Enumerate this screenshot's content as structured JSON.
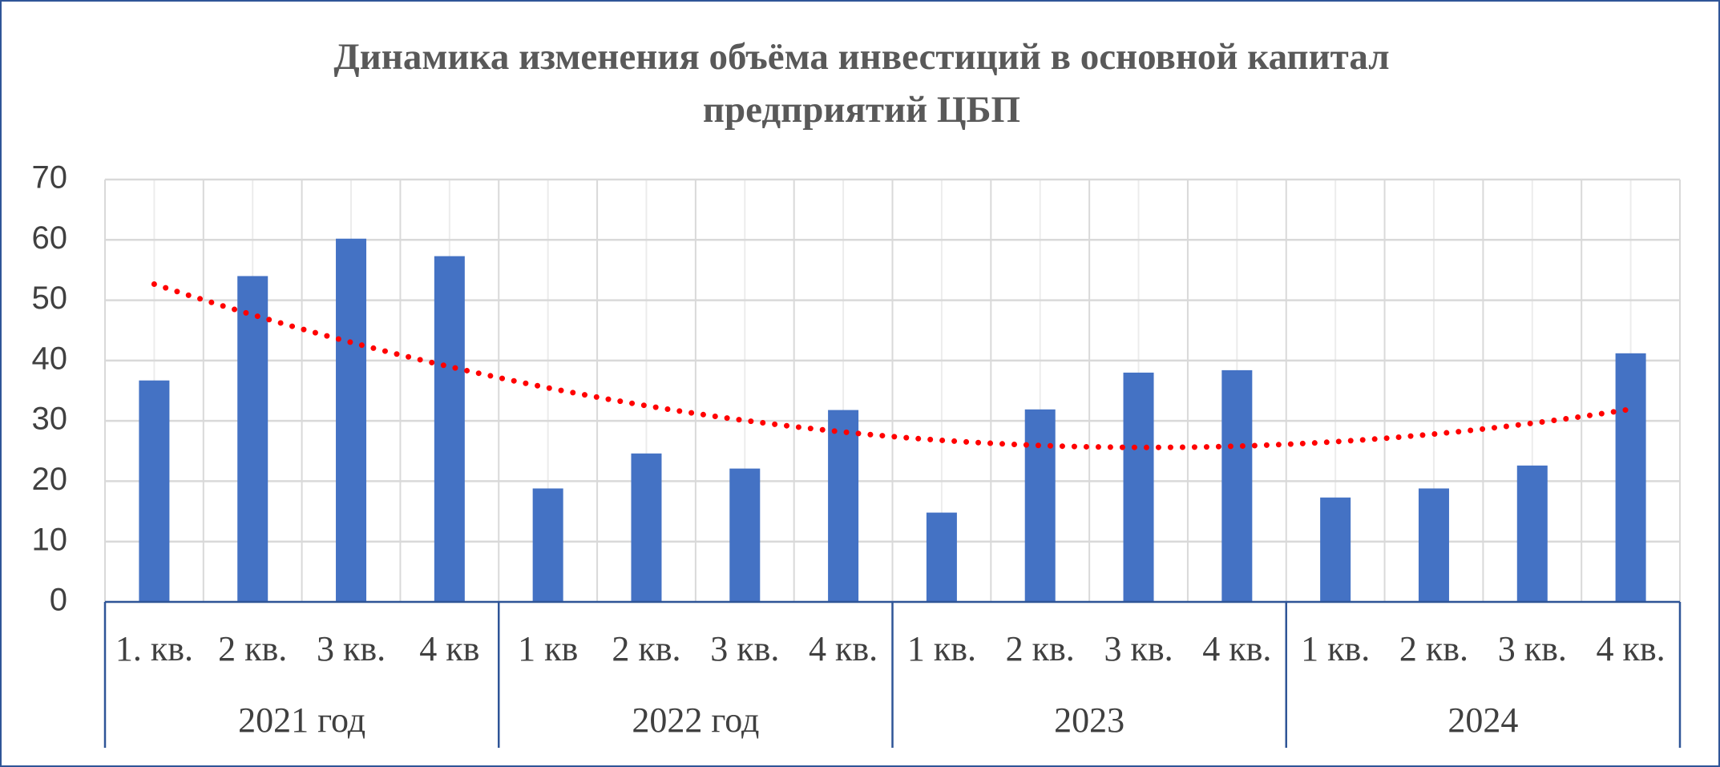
{
  "chart_data": {
    "type": "bar",
    "title": "Динамика изменения объёма инвестиций в основной капитал предприятий ЦБП",
    "categories": [
      "1. кв.",
      "2 кв.",
      "3 кв.",
      "4 кв",
      "1 кв",
      "2 кв.",
      "3 кв.",
      "4 кв.",
      "1 кв.",
      "2 кв.",
      "3 кв.",
      "4 кв.",
      "1 кв.",
      "2 кв.",
      "3 кв.",
      "4 кв."
    ],
    "groups": [
      "2021 год",
      "2022 год",
      "2023",
      "2024"
    ],
    "values": [
      36.7,
      54,
      60.2,
      57.3,
      18.8,
      24.6,
      22.1,
      31.8,
      14.8,
      31.9,
      38,
      38.4,
      17.3,
      18.8,
      22.6,
      41.2
    ],
    "color": "#4472c4",
    "trendline": {
      "order": 2,
      "color": "#ff0000"
    },
    "ylim": [
      0,
      70
    ],
    "yticks": [
      0,
      10,
      20,
      30,
      40,
      50,
      60,
      70
    ],
    "grid": true
  }
}
